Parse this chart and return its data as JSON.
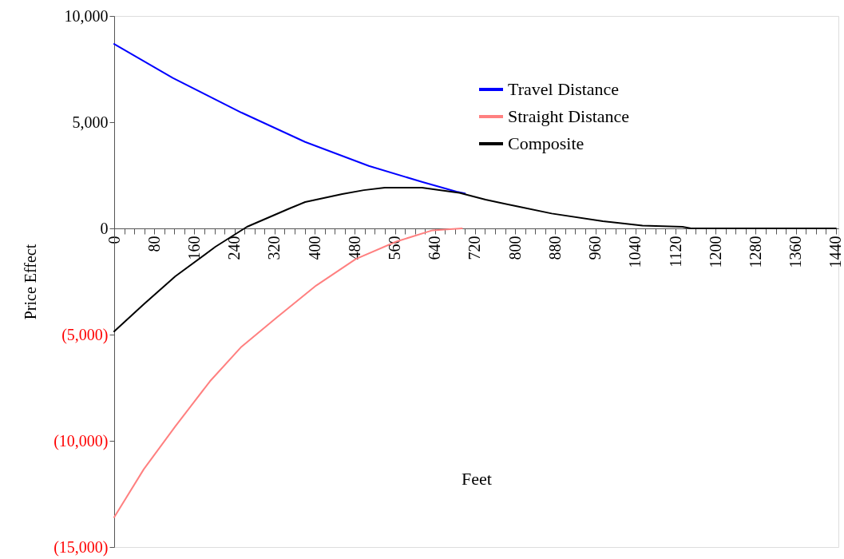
{
  "chart_data": {
    "type": "line",
    "xlabel": "Feet",
    "ylabel": "Price Effect",
    "xlim": [
      0,
      1445
    ],
    "ylim": [
      -15000,
      10000
    ],
    "xticks": [
      0,
      {
        "value": 20,
        "label": null
      },
      {
        "value": 40,
        "label": null
      },
      {
        "value": 60,
        "label": null
      },
      80,
      {
        "value": 100,
        "label": null
      },
      {
        "value": 120,
        "label": null
      },
      {
        "value": 140,
        "label": null
      },
      160,
      {
        "value": 180,
        "label": null
      },
      {
        "value": 200,
        "label": null
      },
      {
        "value": 220,
        "label": null
      },
      240,
      {
        "value": 260,
        "label": null
      },
      {
        "value": 280,
        "label": null
      },
      {
        "value": 300,
        "label": null
      },
      320,
      {
        "value": 340,
        "label": null
      },
      {
        "value": 360,
        "label": null
      },
      {
        "value": 380,
        "label": null
      },
      400,
      {
        "value": 420,
        "label": null
      },
      {
        "value": 440,
        "label": null
      },
      {
        "value": 460,
        "label": null
      },
      480,
      {
        "value": 500,
        "label": null
      },
      {
        "value": 520,
        "label": null
      },
      {
        "value": 540,
        "label": null
      },
      560,
      {
        "value": 580,
        "label": null
      },
      {
        "value": 600,
        "label": null
      },
      {
        "value": 620,
        "label": null
      },
      640,
      {
        "value": 660,
        "label": null
      },
      {
        "value": 680,
        "label": null
      },
      {
        "value": 700,
        "label": null
      },
      720,
      {
        "value": 740,
        "label": null
      },
      {
        "value": 760,
        "label": null
      },
      {
        "value": 780,
        "label": null
      },
      800,
      {
        "value": 820,
        "label": null
      },
      {
        "value": 840,
        "label": null
      },
      {
        "value": 860,
        "label": null
      },
      880,
      {
        "value": 900,
        "label": null
      },
      {
        "value": 920,
        "label": null
      },
      {
        "value": 940,
        "label": null
      },
      960,
      {
        "value": 980,
        "label": null
      },
      {
        "value": 1000,
        "label": null
      },
      {
        "value": 1020,
        "label": null
      },
      1040,
      {
        "value": 1060,
        "label": null
      },
      {
        "value": 1080,
        "label": null
      },
      {
        "value": 1100,
        "label": null
      },
      1120,
      {
        "value": 1140,
        "label": null
      },
      {
        "value": 1160,
        "label": null
      },
      {
        "value": 1180,
        "label": null
      },
      1200,
      {
        "value": 1220,
        "label": null
      },
      {
        "value": 1240,
        "label": null
      },
      {
        "value": 1260,
        "label": null
      },
      1280,
      {
        "value": 1300,
        "label": null
      },
      {
        "value": 1320,
        "label": null
      },
      {
        "value": 1340,
        "label": null
      },
      1360,
      {
        "value": 1380,
        "label": null
      },
      {
        "value": 1400,
        "label": null
      },
      {
        "value": 1420,
        "label": null
      },
      1440
    ],
    "yticks": [
      {
        "value": -15000,
        "label": "(15,000)"
      },
      {
        "value": -10000,
        "label": "(10,000)"
      },
      {
        "value": -5000,
        "label": "(5,000)"
      },
      0,
      {
        "value": 5000,
        "label": "5,000"
      },
      {
        "value": 10000,
        "label": "10,000"
      }
    ],
    "grid": false,
    "legend": "top right",
    "marker": "none",
    "line_style": "solid",
    "series": [
      {
        "name": "Travel Distance",
        "color": "#0000ff",
        "x": [
          0,
          117,
          254,
          381,
          508,
          614,
          683,
          700
        ],
        "values": [
          8680,
          7080,
          5450,
          4070,
          2940,
          2190,
          1730,
          1650
        ]
      },
      {
        "name": "Straight Distance",
        "color": "#ff8080",
        "x": [
          0,
          59,
          122,
          191,
          254,
          324,
          403,
          482,
          562,
          635,
          694
        ],
        "values": [
          -13600,
          -11340,
          -9320,
          -7200,
          -5570,
          -4200,
          -2690,
          -1440,
          -630,
          -90,
          0
        ]
      },
      {
        "name": "Composite",
        "color": "#000000",
        "x": [
          0,
          59,
          122,
          202,
          265,
          350,
          381,
          455,
          498,
          540,
          614,
          689,
          741,
          805,
          873,
          975,
          1054,
          1134,
          1151,
          1440
        ],
        "values": [
          -4850,
          -3570,
          -2255,
          -865,
          75,
          940,
          1240,
          1620,
          1800,
          1920,
          1920,
          1670,
          1350,
          1030,
          700,
          340,
          135,
          75,
          0,
          0
        ]
      }
    ]
  }
}
